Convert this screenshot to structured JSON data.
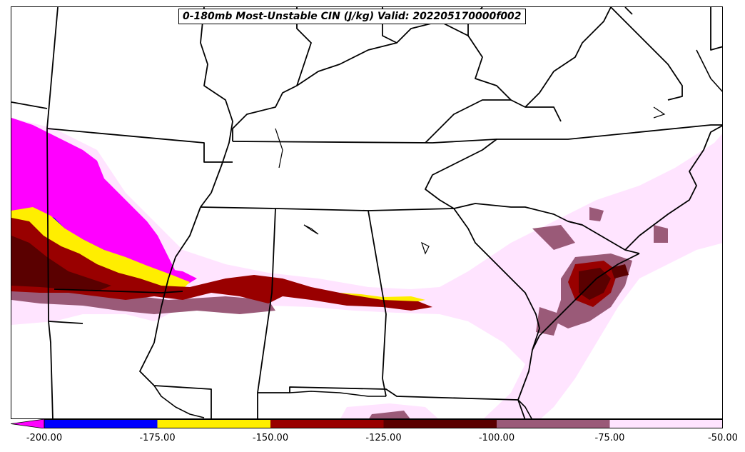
{
  "title": "0-180mb Most-Unstable CIN (J/kg) Valid: 202205170000f002",
  "colorbar": {
    "levels": [
      -200,
      -175,
      -150,
      -125,
      -100,
      -75,
      -50
    ],
    "tick_labels": [
      "-200.00",
      "-175.00",
      "-150.00",
      "-125.00",
      "-100.00",
      "-75.00",
      "-50.00"
    ],
    "colors": [
      "#0000ff",
      "#ffee00",
      "#990000",
      "#5a0000",
      "#9a5a78",
      "#ffe4ff"
    ],
    "under_color": "#ff00ff"
  },
  "fill_colors": {
    "lt200": "#ff00ff",
    "m200_175": "#0000ff",
    "m175_150": "#ffee00",
    "m150_125": "#990000",
    "m125_100": "#5a0000",
    "m100_75": "#9a5a78",
    "m75_50": "#ffe4ff"
  }
}
